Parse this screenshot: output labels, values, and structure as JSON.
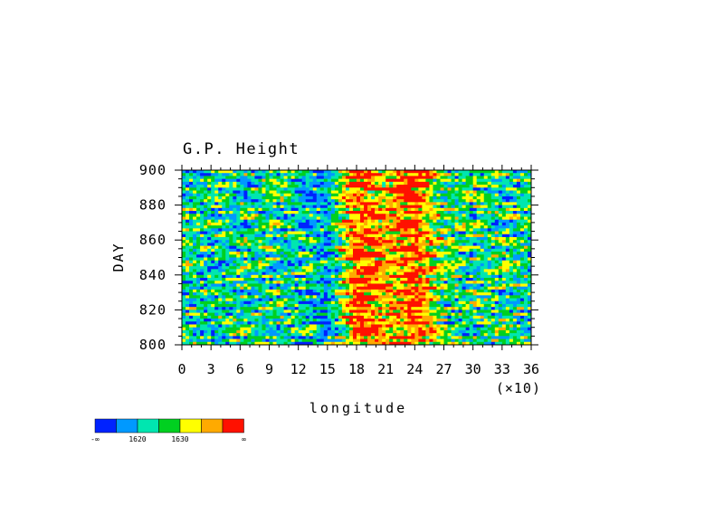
{
  "chart_data": {
    "type": "heatmap",
    "title": "G.P. Height",
    "xlabel": "longitude",
    "x_multiplier": "(×10)",
    "ylabel": "DAY",
    "xlim": [
      0,
      36
    ],
    "ylim": [
      800,
      900
    ],
    "x_ticks": [
      "0",
      "3",
      "6",
      "9",
      "12",
      "15",
      "18",
      "21",
      "24",
      "27",
      "30",
      "33",
      "36"
    ],
    "y_ticks": [
      "800",
      "820",
      "840",
      "860",
      "880",
      "900"
    ],
    "colorbar": {
      "colors": [
        "#0022ff",
        "#0099ff",
        "#00e6b0",
        "#00d020",
        "#ffff00",
        "#ffaa00",
        "#ff1100"
      ],
      "labels": [
        "-∞",
        "1620",
        "1630",
        "∞"
      ]
    },
    "longitude_profile_x": [
      0,
      3,
      6,
      9,
      12,
      15,
      18,
      21,
      24,
      27,
      30,
      33,
      36
    ],
    "longitude_profile_level": [
      2.4,
      2.0,
      2.2,
      2.6,
      1.9,
      1.3,
      5.6,
      4.6,
      5.8,
      2.8,
      2.5,
      2.3,
      2.4
    ]
  }
}
